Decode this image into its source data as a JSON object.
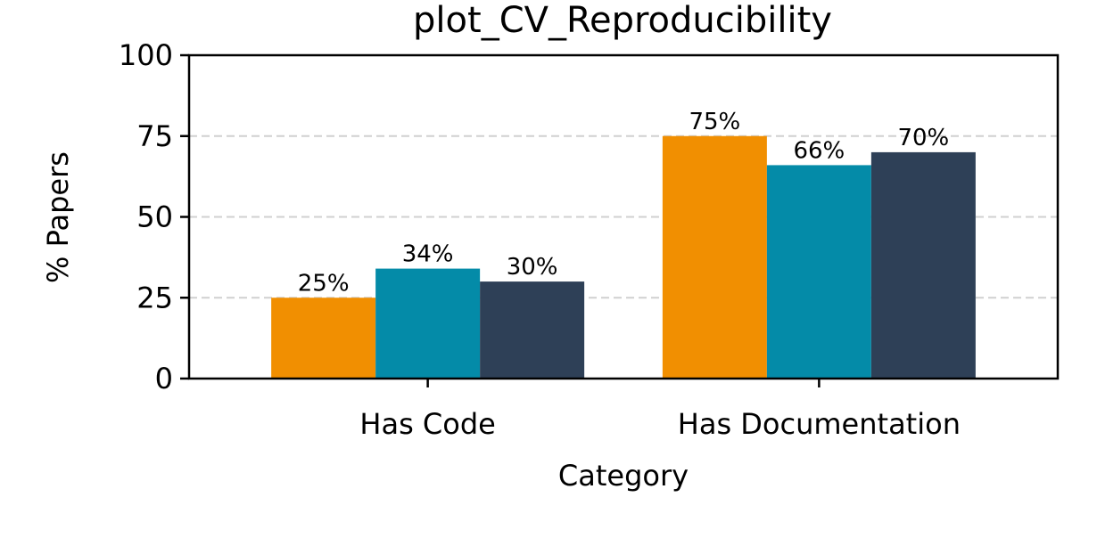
{
  "chart_data": {
    "type": "bar",
    "title": "plot_CV_Reproducibility",
    "xlabel": "Category",
    "ylabel": "% Papers",
    "categories": [
      "Has Code",
      "Has Documentation"
    ],
    "series": [
      {
        "values": [
          25,
          75
        ],
        "labels": [
          "25%",
          "75%"
        ],
        "color": "#F18F01"
      },
      {
        "values": [
          34,
          66
        ],
        "labels": [
          "34%",
          "66%"
        ],
        "color": "#048BA8"
      },
      {
        "values": [
          30,
          70
        ],
        "labels": [
          "30%",
          "70%"
        ],
        "color": "#2E4057"
      }
    ],
    "ylim": [
      0,
      100
    ],
    "yticks": [
      0,
      25,
      50,
      75,
      100
    ],
    "ytick_labels": [
      "0",
      "25",
      "50",
      "75",
      "100"
    ],
    "grid": "horizontal-dashed",
    "legend": "none"
  }
}
